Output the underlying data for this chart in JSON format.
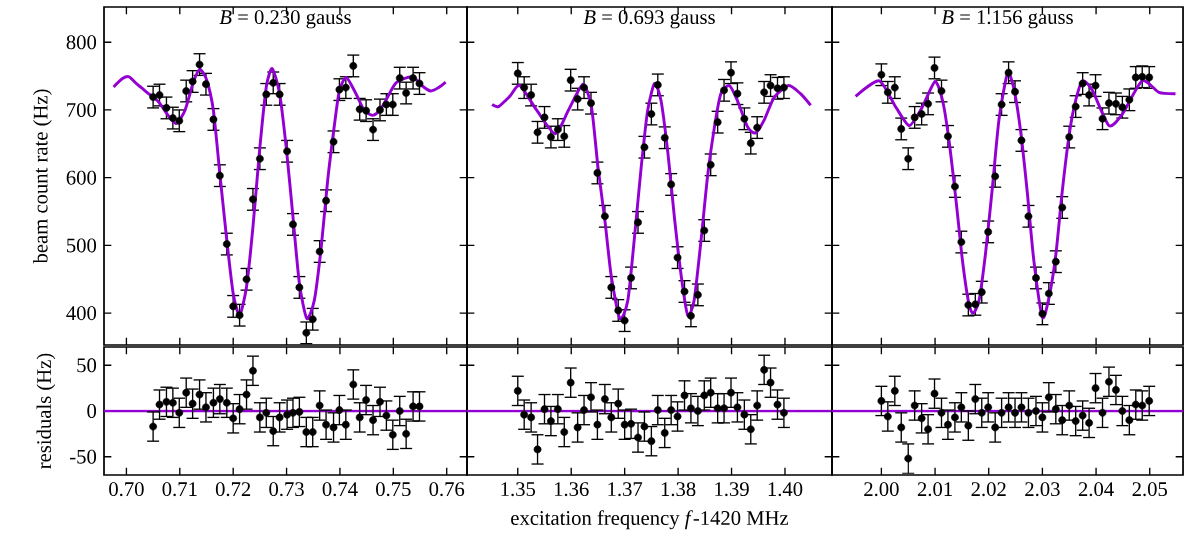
{
  "chart_data": [
    {
      "type": "scatter",
      "title": "*B* = 0.230 gauss",
      "ylabel": "beam count rate (Hz)",
      "xlim": [
        0.6958,
        0.7638
      ],
      "ylim": [
        353,
        852
      ],
      "xticks": [
        0.7,
        0.71,
        0.72,
        0.73,
        0.74,
        0.75,
        0.76
      ],
      "yticks": [
        400,
        500,
        600,
        700,
        800
      ],
      "tick_labels": "y",
      "x": [
        0.705,
        0.7062,
        0.7075,
        0.7087,
        0.7099,
        0.7112,
        0.7124,
        0.7137,
        0.7149,
        0.7163,
        0.7175,
        0.7188,
        0.72,
        0.7212,
        0.7225,
        0.7237,
        0.725,
        0.7262,
        0.7275,
        0.7287,
        0.7301,
        0.7312,
        0.7324,
        0.7337,
        0.7349,
        0.7362,
        0.7374,
        0.7388,
        0.7399,
        0.7411,
        0.7425,
        0.7437,
        0.7449,
        0.7462,
        0.7475,
        0.7487,
        0.7499,
        0.7512,
        0.7524,
        0.7537,
        0.7549
      ],
      "series": [
        {
          "color": "#000000",
          "marker": "circle",
          "values": [
            719,
            722,
            703,
            688,
            684,
            728,
            742,
            767,
            738,
            686,
            603,
            502,
            410,
            397,
            450,
            568,
            628,
            723,
            740,
            723,
            639,
            531,
            438,
            371,
            391,
            491,
            566,
            653,
            730,
            733,
            765,
            701,
            699,
            671,
            700,
            708,
            708,
            747,
            725,
            747,
            739
          ],
          "errors": [
            16,
            16,
            16,
            16,
            16,
            16,
            16,
            16,
            16,
            16,
            16,
            16,
            16,
            16,
            16,
            16,
            16,
            16,
            16,
            16,
            16,
            16,
            16,
            16,
            16,
            16,
            16,
            16,
            16,
            16,
            16,
            16,
            16,
            16,
            16,
            16,
            16,
            16,
            16,
            16,
            16
          ]
        },
        {
          "type": "line",
          "color": "#9400d3",
          "x": [
            0.6976,
            0.6992,
            0.7005,
            0.702,
            0.704,
            0.706,
            0.708,
            0.7094,
            0.711,
            0.7125,
            0.7137,
            0.715,
            0.7163,
            0.7175,
            0.7188,
            0.72,
            0.7212,
            0.7225,
            0.7237,
            0.725,
            0.7262,
            0.7273,
            0.7287,
            0.73,
            0.7312,
            0.7324,
            0.7338,
            0.7352,
            0.7365,
            0.7377,
            0.739,
            0.7399,
            0.7412,
            0.743,
            0.7445,
            0.7461,
            0.7475,
            0.7486,
            0.7505,
            0.7535,
            0.7555,
            0.757,
            0.7585,
            0.7598
          ],
          "values": [
            734,
            746,
            749,
            738,
            725,
            712,
            690,
            680,
            700,
            740,
            760,
            745,
            699,
            606,
            508,
            429,
            397,
            439,
            527,
            645,
            734,
            761,
            724,
            640,
            542,
            444,
            392,
            419,
            498,
            596,
            680,
            729,
            748,
            724,
            700,
            692,
            700,
            714,
            740,
            749,
            735,
            728,
            733,
            741
          ]
        }
      ]
    },
    {
      "type": "scatter",
      "title": "*B* = 0.693 gauss",
      "xlim": [
        1.3405,
        1.4088
      ],
      "ylim": [
        353,
        852
      ],
      "xticks": [
        1.35,
        1.36,
        1.37,
        1.38,
        1.39,
        1.4
      ],
      "yticks": [
        400,
        500,
        600,
        700,
        800
      ],
      "tick_labels": false,
      "x": [
        1.35,
        1.3512,
        1.3525,
        1.3537,
        1.355,
        1.3562,
        1.3575,
        1.3587,
        1.3599,
        1.3612,
        1.3624,
        1.3637,
        1.3649,
        1.3663,
        1.3675,
        1.3688,
        1.37,
        1.3712,
        1.3725,
        1.3737,
        1.375,
        1.3762,
        1.3775,
        1.3787,
        1.3799,
        1.3812,
        1.3824,
        1.3837,
        1.3849,
        1.3861,
        1.3874,
        1.3886,
        1.3899,
        1.3911,
        1.3924,
        1.3936,
        1.3948,
        1.3961,
        1.3973,
        1.3986,
        1.3998
      ],
      "series": [
        {
          "color": "#000000",
          "marker": "circle",
          "values": [
            754,
            733,
            722,
            667,
            689,
            660,
            671,
            661,
            744,
            716,
            733,
            710,
            607,
            543,
            438,
            404,
            389,
            452,
            534,
            645,
            694,
            737,
            659,
            590,
            482,
            432,
            396,
            427,
            522,
            619,
            682,
            729,
            755,
            724,
            687,
            651,
            674,
            726,
            736,
            732,
            733
          ],
          "errors": [
            16,
            16,
            16,
            16,
            16,
            16,
            16,
            16,
            16,
            16,
            16,
            16,
            16,
            16,
            16,
            16,
            16,
            16,
            16,
            16,
            16,
            16,
            16,
            16,
            16,
            16,
            16,
            16,
            16,
            16,
            16,
            16,
            16,
            16,
            16,
            16,
            16,
            16,
            16,
            16,
            16
          ]
        },
        {
          "type": "line",
          "color": "#9400d3",
          "x": [
            1.3452,
            1.3464,
            1.3485,
            1.3504,
            1.3535,
            1.357,
            1.3595,
            1.3622,
            1.3638,
            1.365,
            1.3663,
            1.3675,
            1.3691,
            1.3706,
            1.3719,
            1.3731,
            1.3743,
            1.3756,
            1.3768,
            1.3781,
            1.3793,
            1.3806,
            1.3818,
            1.383,
            1.3843,
            1.3855,
            1.3868,
            1.388,
            1.3896,
            1.3911,
            1.393,
            1.3945,
            1.3961,
            1.398,
            1.4007,
            1.4029,
            1.4048
          ],
          "values": [
            708,
            705,
            720,
            736,
            700,
            665,
            700,
            738,
            704,
            616,
            537,
            454,
            392,
            419,
            517,
            616,
            699,
            739,
            714,
            636,
            542,
            454,
            397,
            419,
            508,
            601,
            675,
            724,
            736,
            714,
            675,
            666,
            685,
            719,
            736,
            724,
            707
          ]
        }
      ]
    },
    {
      "type": "scatter",
      "title": "*B* = 1.156 gauss",
      "xlim": [
        1.9908,
        2.0562
      ],
      "ylim": [
        353,
        852
      ],
      "xticks": [
        2.0,
        2.01,
        2.02,
        2.03,
        2.04,
        2.05
      ],
      "yticks": [
        400,
        500,
        600,
        700,
        800
      ],
      "tick_labels": false,
      "x": [
        2.0,
        2.0012,
        2.0025,
        2.0037,
        2.005,
        2.0062,
        2.0075,
        2.0087,
        2.0099,
        2.0112,
        2.0124,
        2.0137,
        2.0149,
        2.0162,
        2.0175,
        2.0187,
        2.0199,
        2.0212,
        2.0224,
        2.0237,
        2.0249,
        2.0261,
        2.0274,
        2.0288,
        2.03,
        2.0312,
        2.0325,
        2.0337,
        2.035,
        2.0362,
        2.0375,
        2.0387,
        2.0399,
        2.0412,
        2.0424,
        2.0437,
        2.0449,
        2.0462,
        2.0474,
        2.0486,
        2.0499
      ],
      "series": [
        {
          "color": "#000000",
          "marker": "circle",
          "values": [
            752,
            726,
            733,
            672,
            628,
            689,
            694,
            709,
            762,
            728,
            661,
            587,
            505,
            412,
            413,
            431,
            520,
            602,
            708,
            755,
            727,
            655,
            543,
            452,
            399,
            429,
            476,
            556,
            660,
            705,
            739,
            722,
            736,
            687,
            710,
            709,
            704,
            715,
            748,
            749,
            748
          ],
          "errors": [
            16,
            16,
            16,
            16,
            16,
            16,
            16,
            16,
            16,
            16,
            16,
            16,
            16,
            16,
            16,
            16,
            16,
            16,
            16,
            16,
            16,
            16,
            16,
            16,
            16,
            16,
            16,
            16,
            16,
            16,
            16,
            16,
            16,
            16,
            16,
            16,
            16,
            16,
            16,
            16,
            16
          ]
        },
        {
          "type": "line",
          "color": "#9400d3",
          "x": [
            1.9952,
            1.9996,
            2.0027,
            2.0052,
            2.0076,
            2.01,
            2.0114,
            2.0126,
            2.0139,
            2.0151,
            2.0163,
            2.0171,
            2.0182,
            2.0194,
            2.0207,
            2.0219,
            2.0235,
            2.0247,
            2.026,
            2.0272,
            2.0284,
            2.03,
            2.0312,
            2.0325,
            2.0337,
            2.035,
            2.0362,
            2.0375,
            2.0393,
            2.0424,
            2.0449,
            2.0486,
            2.0517,
            2.0548
          ],
          "values": [
            720,
            743,
            704,
            677,
            704,
            742,
            714,
            655,
            567,
            478,
            414,
            400,
            419,
            488,
            587,
            685,
            754,
            731,
            665,
            577,
            478,
            394,
            422,
            486,
            580,
            664,
            714,
            743,
            729,
            677,
            694,
            743,
            726,
            724
          ]
        }
      ]
    },
    {
      "type": "scatter",
      "ylabel": "residuals (Hz)",
      "xlim": [
        0.6958,
        0.7638
      ],
      "ylim": [
        -70,
        70
      ],
      "xticks": [
        {
          "value": 0.7,
          "label": "0.70"
        },
        0.71,
        0.72,
        0.73,
        0.74,
        0.75,
        0.76
      ],
      "yticks": [
        -50,
        0,
        50
      ],
      "x": [
        0.705,
        0.7062,
        0.7075,
        0.7087,
        0.7099,
        0.7112,
        0.7124,
        0.7137,
        0.7149,
        0.7163,
        0.7175,
        0.7188,
        0.72,
        0.7212,
        0.7225,
        0.7237,
        0.725,
        0.7262,
        0.7275,
        0.7287,
        0.7301,
        0.7312,
        0.7324,
        0.7337,
        0.7349,
        0.7362,
        0.7374,
        0.7388,
        0.7399,
        0.7411,
        0.7425,
        0.7437,
        0.7449,
        0.7462,
        0.7475,
        0.7487,
        0.7499,
        0.7512,
        0.7524,
        0.7537,
        0.7549
      ],
      "ref_lines": [
        {
          "axis": "y",
          "value": 0,
          "color": "#9400d3"
        }
      ],
      "series": [
        {
          "color": "#000000",
          "marker": "circle",
          "values": [
            -17,
            7,
            10,
            9,
            -2,
            20,
            8,
            18,
            4,
            9,
            13,
            9,
            -8,
            2,
            18,
            44,
            -7,
            -2,
            -22,
            -7,
            -4,
            -2,
            -1,
            -23,
            -23,
            6,
            -15,
            -18,
            1,
            -15,
            29,
            -7,
            12,
            -10,
            10,
            -5,
            -26,
            0,
            -25,
            5,
            5
          ],
          "errors": [
            16,
            16,
            16,
            16,
            16,
            16,
            16,
            16,
            16,
            16,
            16,
            16,
            16,
            16,
            16,
            16,
            16,
            16,
            16,
            16,
            16,
            16,
            16,
            16,
            16,
            16,
            16,
            16,
            16,
            16,
            16,
            16,
            16,
            16,
            16,
            16,
            16,
            16,
            16,
            16,
            16
          ]
        }
      ]
    },
    {
      "type": "scatter",
      "xlabel": "excitation frequency *f*-1420 MHz",
      "xlim": [
        1.3405,
        1.4088
      ],
      "ylim": [
        -70,
        70
      ],
      "xticks": [
        1.35,
        1.36,
        1.37,
        1.38,
        1.39,
        {
          "value": 1.4,
          "label": "1.40"
        }
      ],
      "yticks": [
        -50,
        0,
        50
      ],
      "tick_labels": "x",
      "x": [
        1.35,
        1.3512,
        1.3525,
        1.3537,
        1.355,
        1.3562,
        1.3575,
        1.3587,
        1.3599,
        1.3612,
        1.3624,
        1.3637,
        1.3649,
        1.3663,
        1.3675,
        1.3688,
        1.37,
        1.3712,
        1.3725,
        1.3737,
        1.375,
        1.3762,
        1.3775,
        1.3787,
        1.3799,
        1.3812,
        1.3824,
        1.3837,
        1.3849,
        1.3861,
        1.3874,
        1.3886,
        1.3899,
        1.3911,
        1.3924,
        1.3936,
        1.3948,
        1.3961,
        1.3973,
        1.3986,
        1.3998
      ],
      "ref_lines": [
        {
          "axis": "y",
          "value": 0,
          "color": "#9400d3"
        }
      ],
      "series": [
        {
          "color": "#000000",
          "marker": "circle",
          "values": [
            22,
            -4,
            -7,
            -42,
            2,
            -11,
            2,
            -23,
            31,
            -18,
            1,
            15,
            -15,
            13,
            -7,
            8,
            -15,
            -14,
            -29,
            -17,
            -33,
            1,
            -24,
            1,
            -6,
            17,
            3,
            0,
            17,
            20,
            3,
            3,
            20,
            4,
            -4,
            -20,
            6,
            45,
            31,
            7,
            -2
          ],
          "errors": [
            16,
            16,
            16,
            16,
            16,
            16,
            16,
            16,
            16,
            16,
            16,
            16,
            16,
            16,
            16,
            16,
            16,
            16,
            16,
            16,
            16,
            16,
            16,
            16,
            16,
            16,
            16,
            16,
            16,
            16,
            16,
            16,
            16,
            16,
            16,
            16,
            16,
            16,
            16,
            16,
            16
          ]
        }
      ]
    },
    {
      "type": "scatter",
      "xlim": [
        1.9908,
        2.0562
      ],
      "ylim": [
        -70,
        70
      ],
      "xticks": [
        {
          "value": 2.0,
          "label": "2.00"
        },
        2.01,
        2.02,
        2.03,
        2.04,
        2.05
      ],
      "yticks": [
        -50,
        0,
        50
      ],
      "tick_labels": "x",
      "x": [
        2.0,
        2.0012,
        2.0025,
        2.0037,
        2.005,
        2.0062,
        2.0075,
        2.0087,
        2.0099,
        2.0112,
        2.0124,
        2.0137,
        2.0149,
        2.0162,
        2.0175,
        2.0187,
        2.0199,
        2.0212,
        2.0224,
        2.0237,
        2.0249,
        2.0261,
        2.0274,
        2.0288,
        2.03,
        2.0312,
        2.0325,
        2.0337,
        2.035,
        2.0362,
        2.0375,
        2.0387,
        2.0399,
        2.0412,
        2.0424,
        2.0437,
        2.0449,
        2.0462,
        2.0474,
        2.0486,
        2.0499
      ],
      "ref_lines": [
        {
          "axis": "y",
          "value": 0,
          "color": "#9400d3"
        }
      ],
      "series": [
        {
          "color": "#000000",
          "marker": "circle",
          "values": [
            11,
            -6,
            22,
            -18,
            -52,
            6,
            -8,
            -20,
            19,
            -2,
            -15,
            -7,
            4,
            -16,
            13,
            -2,
            4,
            -18,
            -2,
            4,
            -2,
            4,
            -2,
            0,
            -7,
            15,
            2,
            -10,
            6,
            -11,
            -5,
            -13,
            25,
            -2,
            32,
            23,
            0,
            -10,
            7,
            6,
            11
          ],
          "errors": [
            16,
            16,
            16,
            16,
            16,
            16,
            16,
            16,
            16,
            16,
            16,
            16,
            16,
            16,
            16,
            16,
            16,
            16,
            16,
            16,
            16,
            16,
            16,
            16,
            16,
            16,
            16,
            16,
            16,
            16,
            16,
            16,
            16,
            16,
            16,
            16,
            16,
            16,
            16,
            16,
            16
          ]
        }
      ]
    }
  ]
}
